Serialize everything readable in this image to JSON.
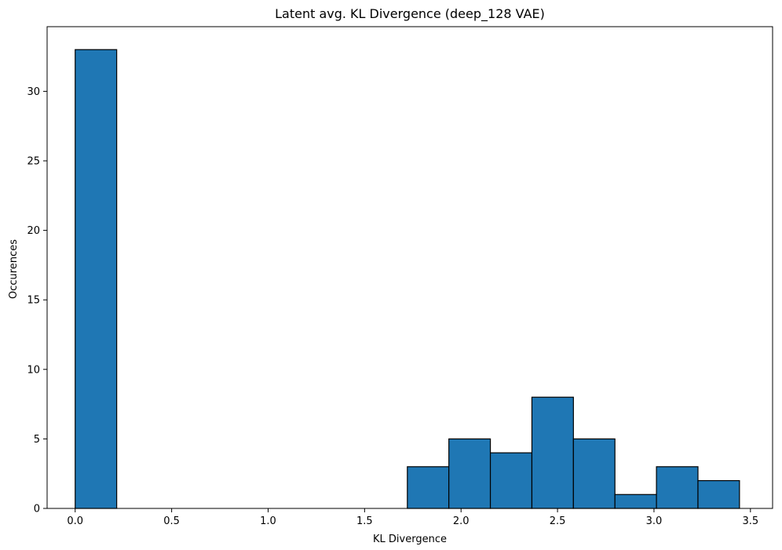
{
  "chart_data": {
    "type": "histogram",
    "title": "Latent avg. KL Divergence (deep_128 VAE)",
    "xlabel": "KL Divergence",
    "ylabel": "Occurences",
    "xlim": [
      -0.1455,
      3.6147
    ],
    "ylim": [
      0,
      34.65
    ],
    "xticks": [
      0.0,
      0.5,
      1.0,
      1.5,
      2.0,
      2.5,
      3.0,
      3.5
    ],
    "xtick_labels": [
      "0.0",
      "0.5",
      "1.0",
      "1.5",
      "2.0",
      "2.5",
      "3.0",
      "3.5"
    ],
    "yticks": [
      0,
      5,
      10,
      15,
      20,
      25,
      30
    ],
    "ytick_labels": [
      "0",
      "5",
      "10",
      "15",
      "20",
      "25",
      "30"
    ],
    "bins": [
      {
        "x0": 0.0,
        "x1": 0.2152,
        "count": 33
      },
      {
        "x0": 1.7216,
        "x1": 1.9368,
        "count": 3
      },
      {
        "x0": 1.9368,
        "x1": 2.152,
        "count": 5
      },
      {
        "x0": 2.152,
        "x1": 2.3672,
        "count": 4
      },
      {
        "x0": 2.3672,
        "x1": 2.5824,
        "count": 8
      },
      {
        "x0": 2.5824,
        "x1": 2.7976,
        "count": 5
      },
      {
        "x0": 2.7976,
        "x1": 3.0128,
        "count": 1
      },
      {
        "x0": 3.0128,
        "x1": 3.228,
        "count": 3
      },
      {
        "x0": 3.228,
        "x1": 3.4432,
        "count": 2
      }
    ],
    "bar_color": "#1f77b4",
    "edge_color": "#000000",
    "grid": false,
    "legend": "none"
  }
}
